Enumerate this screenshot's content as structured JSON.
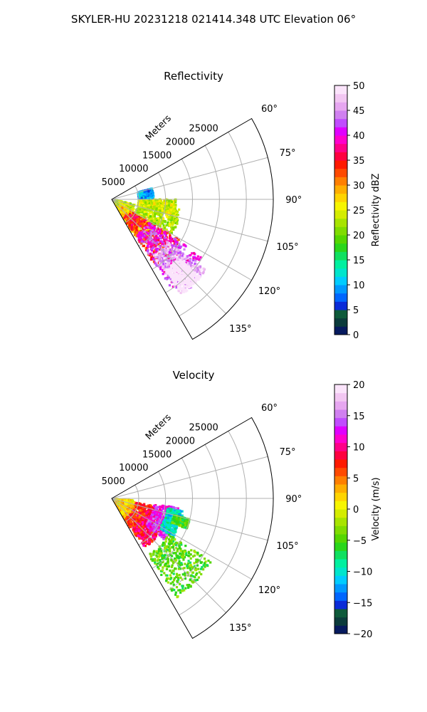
{
  "figure": {
    "suptitle": "SKYLER-HU  20231218  021414.348 UTC Elevation 06°"
  },
  "chart_data": [
    {
      "type": "heatmap",
      "projection": "polar-sector",
      "title": "Reflectivity",
      "radial_label": "Meters",
      "theta_range_deg": [
        60,
        150
      ],
      "r_range": [
        0,
        30000
      ],
      "r_ticks": [
        5000,
        10000,
        15000,
        20000,
        25000
      ],
      "r_tick_labels": [
        "5000",
        "10000",
        "15000",
        "20000",
        "25000"
      ],
      "theta_ticks_deg": [
        60,
        75,
        90,
        105,
        120,
        135
      ],
      "theta_tick_labels": [
        "60°",
        "75°",
        "90°",
        "105°",
        "120°",
        "135°"
      ],
      "grid": true,
      "colorbar": {
        "label": "Reflectivity dBZ",
        "vmin": 0,
        "vmax": 50,
        "ticks": [
          0,
          5,
          10,
          15,
          20,
          25,
          30,
          35,
          40,
          45,
          50
        ],
        "tick_labels": [
          "0",
          "5",
          "10",
          "15",
          "20",
          "25",
          "30",
          "35",
          "40",
          "45",
          "50"
        ],
        "colors": [
          "#061a5e",
          "#0b3b3b",
          "#0e5a3a",
          "#0a2bd8",
          "#0066ff",
          "#0099ff",
          "#00ccff",
          "#00e5cc",
          "#00f0a0",
          "#10e060",
          "#2ad61a",
          "#55d600",
          "#80dc00",
          "#a8e400",
          "#d4ec00",
          "#f7f500",
          "#ffd400",
          "#ffae00",
          "#ff7f00",
          "#ff4a00",
          "#ff1a00",
          "#ff0040",
          "#ff0088",
          "#ff00cc",
          "#e000ff",
          "#c04cff",
          "#d080f0",
          "#e6a6f0",
          "#f2c6f2",
          "#fbe4fb"
        ]
      },
      "echo_field": [
        {
          "theta_deg": [
            102,
            150
          ],
          "r": [
            500,
            4500
          ],
          "level": 14
        },
        {
          "theta_deg": [
            118,
            148
          ],
          "r": [
            2000,
            10000
          ],
          "level": 16
        },
        {
          "theta_deg": [
            120,
            147
          ],
          "r": [
            4000,
            15000
          ],
          "level": 20
        },
        {
          "theta_deg": [
            122,
            146
          ],
          "r": [
            8000,
            20000
          ],
          "level": 24
        },
        {
          "theta_deg": [
            127,
            144
          ],
          "r": [
            13000,
            22000
          ],
          "level": 27
        },
        {
          "theta_deg": [
            131,
            143
          ],
          "r": [
            16500,
            22000
          ],
          "level": 33
        },
        {
          "theta_deg": [
            98,
            120
          ],
          "r": [
            5000,
            13000
          ],
          "level": 13
        },
        {
          "theta_deg": [
            90,
            104
          ],
          "r": [
            5000,
            12000
          ],
          "level": 14
        },
        {
          "theta_deg": [
            75,
            88
          ],
          "r": [
            5000,
            7800
          ],
          "level": 5
        }
      ]
    },
    {
      "type": "heatmap",
      "projection": "polar-sector",
      "title": "Velocity",
      "radial_label": "Meters",
      "theta_range_deg": [
        60,
        150
      ],
      "r_range": [
        0,
        30000
      ],
      "r_ticks": [
        5000,
        10000,
        15000,
        20000,
        25000
      ],
      "r_tick_labels": [
        "5000",
        "10000",
        "15000",
        "20000",
        "25000"
      ],
      "theta_ticks_deg": [
        60,
        75,
        90,
        105,
        120,
        135
      ],
      "theta_tick_labels": [
        "60°",
        "75°",
        "90°",
        "105°",
        "120°",
        "135°"
      ],
      "grid": true,
      "colorbar": {
        "label": "Velocity (m/s)",
        "vmin": -20,
        "vmax": 20,
        "ticks": [
          -20,
          -15,
          -10,
          -5,
          0,
          5,
          10,
          15,
          20
        ],
        "tick_labels": [
          "−20",
          "−15",
          "−10",
          "−5",
          "0",
          "5",
          "10",
          "15",
          "20"
        ],
        "colors": [
          "#061a5e",
          "#0b3b3b",
          "#0e5a3a",
          "#0a2bd8",
          "#0066ff",
          "#0099ff",
          "#00ccff",
          "#00e5cc",
          "#00f0a0",
          "#10e060",
          "#2ad61a",
          "#55d600",
          "#80dc00",
          "#a8e400",
          "#d4ec00",
          "#f7f500",
          "#ffd400",
          "#ffae00",
          "#ff7f00",
          "#ff4a00",
          "#ff1a00",
          "#ff0040",
          "#ff0088",
          "#ff00cc",
          "#e000ff",
          "#c04cff",
          "#d080f0",
          "#e6a6f0",
          "#f2c6f2",
          "#fbe4fb"
        ]
      },
      "echo_field": [
        {
          "theta_deg": [
            95,
            150
          ],
          "r": [
            500,
            4500
          ],
          "level": 16
        },
        {
          "theta_deg": [
            100,
            148
          ],
          "r": [
            4500,
            8500
          ],
          "level": 20
        },
        {
          "theta_deg": [
            110,
            146
          ],
          "r": [
            7000,
            11000
          ],
          "level": 21
        },
        {
          "theta_deg": [
            98,
            128
          ],
          "r": [
            8000,
            12500
          ],
          "level": 24
        },
        {
          "theta_deg": [
            100,
            122
          ],
          "r": [
            10500,
            13500
          ],
          "level": 7
        },
        {
          "theta_deg": [
            122,
            147
          ],
          "r": [
            12500,
            22000
          ],
          "level": 11
        },
        {
          "theta_deg": [
            105,
            112
          ],
          "r": [
            12000,
            15000
          ],
          "level": 11
        }
      ]
    }
  ]
}
